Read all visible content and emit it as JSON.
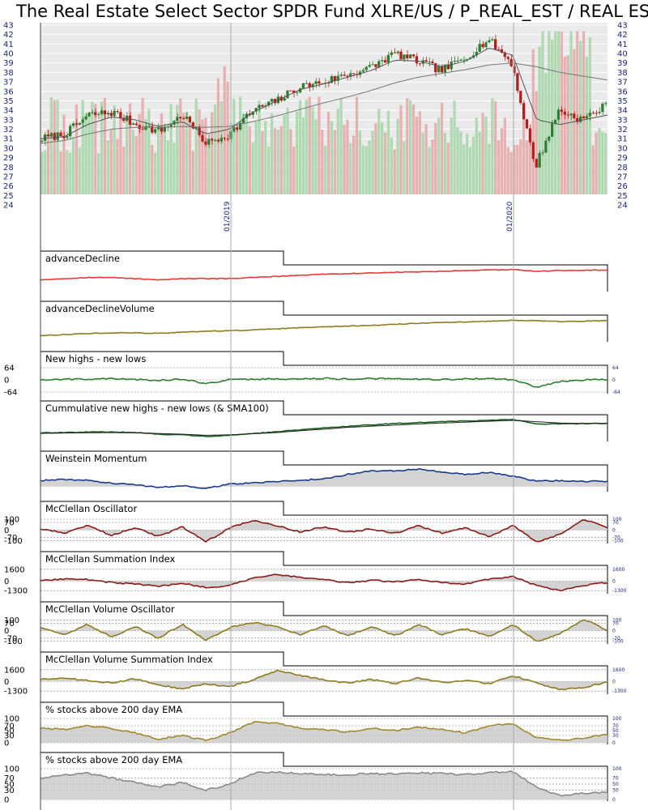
{
  "colors": {
    "background": "#eaeaea",
    "grid": "#ffffff",
    "axis_text": "#1a237e",
    "up_candle": "#2e7d32",
    "down_candle": "#b71c1c",
    "volume_up": "#a5d6a7",
    "volume_down": "#e6a7a7",
    "advance_decline": "#e53935",
    "adv_decl_volume": "#8d7b22",
    "new_highs_lows": "#2e7d32",
    "cumulative_nhnl": "#1b5e20",
    "weinstein": "#1a3a8a",
    "mcclellan": "#8b1a1a",
    "volume_osc": "#8d7b22",
    "pct_ema_1": "#a08a2a",
    "pct_ema_2": "#8a8a8a",
    "fill": "#c8c8c8"
  },
  "chart_data": [
    {
      "type": "candlestick",
      "title": "The Real Estate Select Sector SPDR Fund XLRE/US / P_REAL_EST / REAL ESTATE",
      "y_ticks": [
        24,
        25,
        26,
        27,
        28,
        29,
        30,
        31,
        32,
        33,
        34,
        35,
        36,
        37,
        38,
        39,
        40,
        41,
        42,
        43
      ],
      "ylim": [
        24,
        43
      ],
      "date_labels": [
        "01/2019",
        "01/2020"
      ],
      "close_keypoints": [
        31,
        31.5,
        33.5,
        33.8,
        32.5,
        31.8,
        33.5,
        30.5,
        31.5,
        34,
        35,
        36.5,
        37,
        37.8,
        38.5,
        40,
        39.2,
        38.2,
        39.5,
        41.5,
        39,
        28,
        34,
        33,
        34.5
      ],
      "sma_fast_keypoints": [
        31,
        31.2,
        32.5,
        33.3,
        33,
        32.3,
        32.8,
        31.5,
        32,
        33.8,
        35,
        36.2,
        36.8,
        37.5,
        38.2,
        39.3,
        39.2,
        38.6,
        39.2,
        40.6,
        39.8,
        33,
        32.5,
        33,
        33.5
      ],
      "sma_slow_keypoints": [
        30.5,
        30.8,
        31.5,
        32,
        32.2,
        32.2,
        32.3,
        32.2,
        32.3,
        32.8,
        33.4,
        34.1,
        34.8,
        35.4,
        36.1,
        36.9,
        37.5,
        37.9,
        38.3,
        38.8,
        39,
        38.6,
        38,
        37.6,
        37.2
      ]
    },
    {
      "type": "line",
      "name": "advanceDecline",
      "keypoints": [
        0.45,
        0.5,
        0.55,
        0.55,
        0.5,
        0.45,
        0.5,
        0.5,
        0.5,
        0.55,
        0.6,
        0.65,
        0.7,
        0.72,
        0.75,
        0.78,
        0.8,
        0.82,
        0.85,
        0.88,
        0.9,
        0.82,
        0.86,
        0.87,
        0.88
      ]
    },
    {
      "type": "line",
      "name": "advanceDeclineVolume",
      "keypoints": [
        0.2,
        0.25,
        0.3,
        0.32,
        0.32,
        0.3,
        0.35,
        0.4,
        0.42,
        0.45,
        0.5,
        0.55,
        0.6,
        0.62,
        0.65,
        0.7,
        0.75,
        0.78,
        0.8,
        0.84,
        0.88,
        0.86,
        0.82,
        0.84,
        0.86
      ]
    },
    {
      "type": "line",
      "name": "New highs - new lows",
      "y_ticks_left": [
        "64",
        "0",
        "-64"
      ],
      "y_ticks_right": [
        "64",
        "0",
        "-64"
      ],
      "keypoints": [
        0,
        3,
        5,
        6,
        2,
        -2,
        4,
        -20,
        2,
        3,
        6,
        4,
        8,
        5,
        6,
        9,
        4,
        2,
        5,
        8,
        0,
        -38,
        -10,
        0,
        1
      ],
      "ylim": [
        -64,
        64
      ]
    },
    {
      "type": "line",
      "name": "Cummulative new highs - new lows (& SMA100)",
      "keypoints": [
        0.3,
        0.32,
        0.34,
        0.35,
        0.32,
        0.25,
        0.22,
        0.15,
        0.2,
        0.28,
        0.35,
        0.45,
        0.52,
        0.6,
        0.66,
        0.72,
        0.76,
        0.8,
        0.83,
        0.86,
        0.9,
        0.7,
        0.7,
        0.72,
        0.72
      ],
      "sma_keypoints": [
        0.28,
        0.3,
        0.31,
        0.32,
        0.31,
        0.28,
        0.25,
        0.2,
        0.22,
        0.27,
        0.32,
        0.4,
        0.47,
        0.55,
        0.6,
        0.65,
        0.7,
        0.74,
        0.78,
        0.82,
        0.86,
        0.8,
        0.74,
        0.72,
        0.72
      ]
    },
    {
      "type": "area",
      "name": "Weinstein Momentum",
      "keypoints": [
        0.35,
        0.4,
        0.35,
        0.2,
        0.1,
        -0.05,
        0.05,
        -0.1,
        0.15,
        0.2,
        0.3,
        0.35,
        0.45,
        0.7,
        0.9,
        0.9,
        1.0,
        0.85,
        0.7,
        0.8,
        0.6,
        0.3,
        0.35,
        0.3,
        0.3
      ],
      "ylim": [
        -0.2,
        1.1
      ]
    },
    {
      "type": "area",
      "name": "McClellan Oscillator",
      "y_ticks_left": [
        "100",
        "70",
        "0",
        "-70",
        "-100"
      ],
      "y_ticks_right": [
        "100",
        "70",
        "0",
        "-70",
        "-100"
      ],
      "keypoints": [
        10,
        -30,
        40,
        -50,
        20,
        -60,
        30,
        -110,
        20,
        90,
        40,
        -20,
        30,
        -20,
        10,
        -30,
        40,
        -30,
        20,
        -60,
        40,
        -110,
        -40,
        100,
        20
      ],
      "ylim": [
        -110,
        115
      ]
    },
    {
      "type": "area",
      "name": "McClellan Summation Index",
      "y_ticks_left": [
        "1600",
        "0",
        "-1300"
      ],
      "y_ticks_right": [
        "1600",
        "0",
        "-1300"
      ],
      "keypoints": [
        100,
        300,
        200,
        -200,
        -400,
        -700,
        -300,
        -900,
        -600,
        400,
        900,
        500,
        200,
        -200,
        100,
        -100,
        200,
        -200,
        -400,
        300,
        600,
        -600,
        -1300,
        -600,
        -200
      ],
      "ylim": [
        -1500,
        1800
      ]
    },
    {
      "type": "area",
      "name": "McClellan Volume Oscillator",
      "y_ticks_left": [
        "100",
        "70",
        "0",
        "-70",
        "-100"
      ],
      "y_ticks_right": [
        "100",
        "70",
        "0",
        "-70",
        "-100"
      ],
      "keypoints": [
        30,
        -40,
        60,
        -60,
        40,
        -70,
        60,
        -90,
        30,
        80,
        40,
        -40,
        50,
        -50,
        40,
        -50,
        60,
        -40,
        20,
        -60,
        60,
        -100,
        -30,
        110,
        0
      ],
      "ylim": [
        -110,
        120
      ]
    },
    {
      "type": "area",
      "name": "McClellan Volume Summation Index",
      "y_ticks_left": [
        "1600",
        "0",
        "-1300"
      ],
      "y_ticks_right": [
        "1600",
        "0",
        "-1300"
      ],
      "keypoints": [
        300,
        500,
        100,
        -200,
        400,
        -500,
        -1000,
        -300,
        -700,
        200,
        1500,
        800,
        200,
        -200,
        300,
        -300,
        500,
        -100,
        100,
        -300,
        800,
        -200,
        -1100,
        -800,
        -100
      ],
      "ylim": [
        -1500,
        1800
      ]
    },
    {
      "type": "area",
      "name": "% stocks above 200 day EMA",
      "y_ticks_left": [
        "100",
        "70",
        "50",
        "30",
        "0"
      ],
      "y_ticks_right": [
        "100",
        "70",
        "50",
        "30",
        "0"
      ],
      "keypoints": [
        60,
        55,
        70,
        60,
        40,
        15,
        30,
        10,
        40,
        85,
        80,
        60,
        55,
        45,
        60,
        50,
        65,
        55,
        40,
        70,
        80,
        20,
        10,
        20,
        35
      ],
      "ylim": [
        0,
        100
      ]
    },
    {
      "type": "area",
      "name": "% stocks above 200 day EMA",
      "y_ticks_left": [
        "100",
        "70",
        "50",
        "30",
        "0"
      ],
      "y_ticks_right": [
        "100",
        "70",
        "50",
        "30",
        "0"
      ],
      "keypoints": [
        70,
        80,
        85,
        70,
        55,
        40,
        55,
        30,
        50,
        85,
        90,
        85,
        82,
        80,
        85,
        82,
        86,
        84,
        80,
        88,
        90,
        40,
        12,
        20,
        22
      ],
      "ylim": [
        0,
        100
      ]
    }
  ]
}
